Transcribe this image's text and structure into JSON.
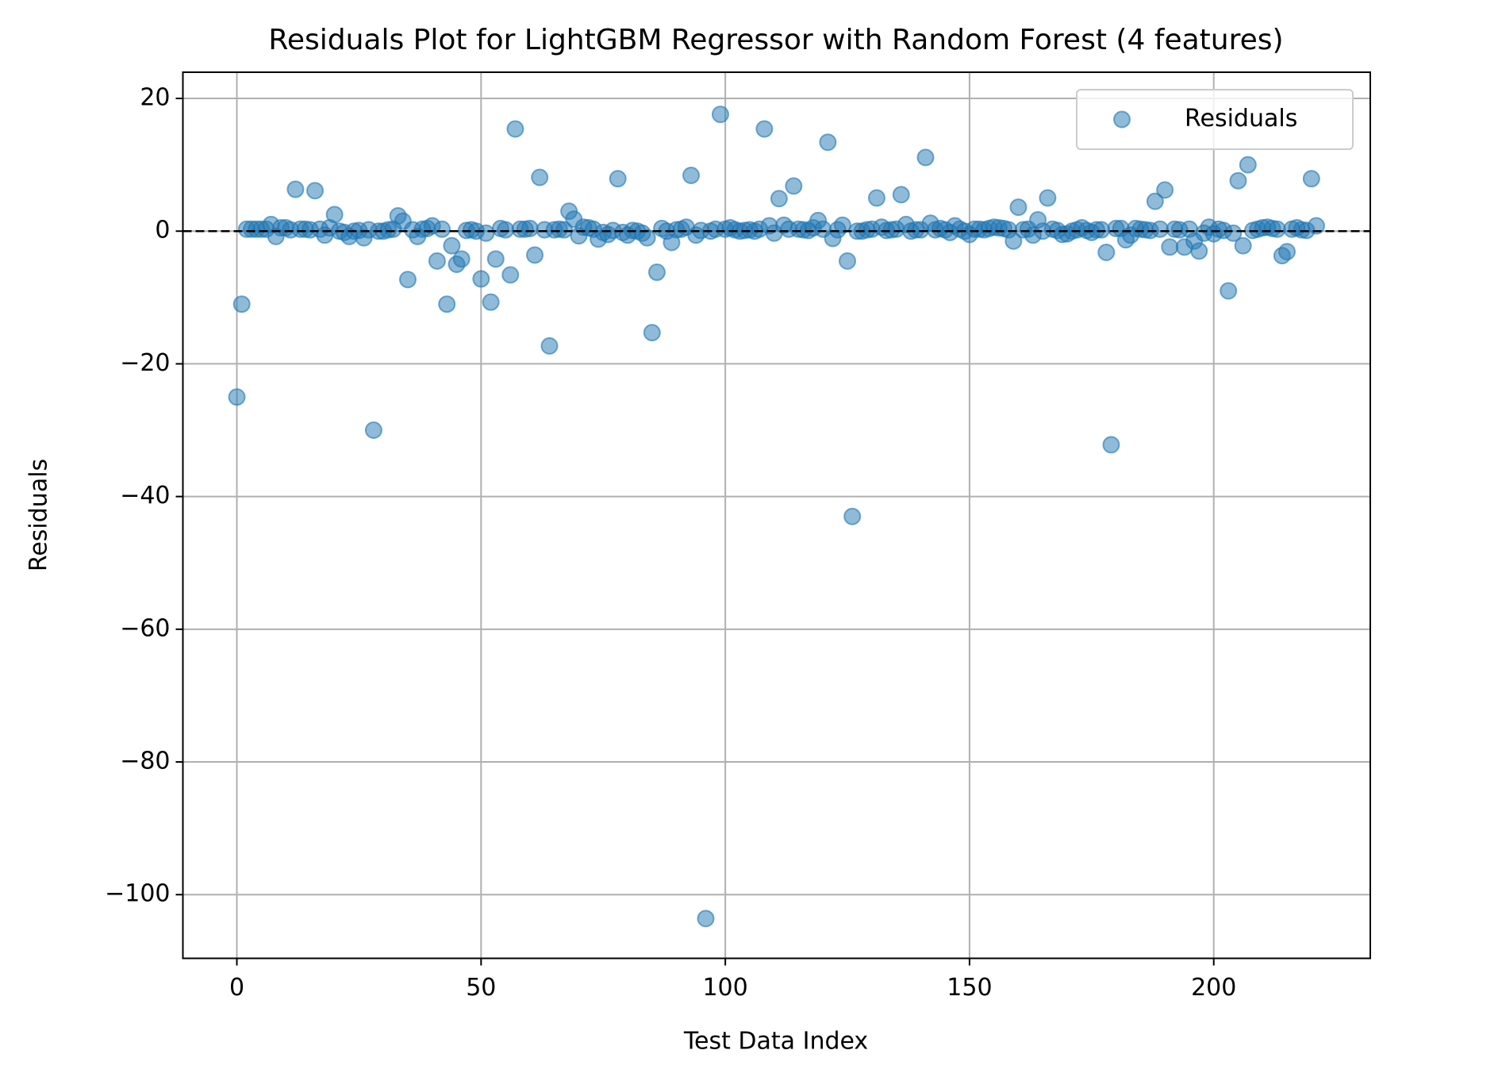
{
  "chart_data": {
    "type": "scatter",
    "title": "Residuals Plot for LightGBM Regressor with Random Forest (4 features)",
    "xlabel": "Test Data Index",
    "ylabel": "Residuals",
    "xlim": [
      -11.05,
      232.05
    ],
    "ylim": [
      -109.6,
      23.95
    ],
    "xticks": [
      0,
      50,
      100,
      150,
      200
    ],
    "yticks": [
      20,
      0,
      {
        "value": -20,
        "label": "−20"
      },
      {
        "value": -40,
        "label": "−40"
      },
      {
        "value": -60,
        "label": "−60"
      },
      {
        "value": -80,
        "label": "−80"
      },
      {
        "value": -100,
        "label": "−100"
      }
    ],
    "grid": true,
    "legend": "upper right",
    "reference_line": 0,
    "series": [
      {
        "name": "Residuals",
        "color": "#1f77b4",
        "x": [
          0,
          1,
          2,
          3,
          4,
          5,
          6,
          7,
          8,
          9,
          10,
          11,
          12,
          13,
          14,
          15,
          16,
          17,
          18,
          19,
          20,
          21,
          22,
          23,
          24,
          25,
          26,
          27,
          28,
          29,
          30,
          31,
          32,
          33,
          34,
          35,
          36,
          37,
          38,
          39,
          40,
          41,
          42,
          43,
          44,
          45,
          46,
          47,
          48,
          49,
          50,
          51,
          52,
          53,
          54,
          55,
          56,
          57,
          58,
          59,
          60,
          61,
          62,
          63,
          64,
          65,
          66,
          67,
          68,
          69,
          70,
          71,
          72,
          73,
          74,
          75,
          76,
          77,
          78,
          79,
          80,
          81,
          82,
          83,
          84,
          85,
          86,
          87,
          88,
          89,
          90,
          91,
          92,
          93,
          94,
          95,
          96,
          97,
          98,
          99,
          100,
          101,
          102,
          103,
          104,
          105,
          106,
          107,
          108,
          109,
          110,
          111,
          112,
          113,
          114,
          115,
          116,
          117,
          118,
          119,
          120,
          121,
          122,
          123,
          124,
          125,
          126,
          127,
          128,
          129,
          130,
          131,
          132,
          133,
          134,
          135,
          136,
          137,
          138,
          139,
          140,
          141,
          142,
          143,
          144,
          145,
          146,
          147,
          148,
          149,
          150,
          151,
          152,
          153,
          154,
          155,
          156,
          157,
          158,
          159,
          160,
          161,
          162,
          163,
          164,
          165,
          166,
          167,
          168,
          169,
          170,
          171,
          172,
          173,
          174,
          175,
          176,
          177,
          178,
          179,
          180,
          181,
          182,
          183,
          184,
          185,
          186,
          187,
          188,
          189,
          190,
          191,
          192,
          193,
          194,
          195,
          196,
          197,
          198,
          199,
          200,
          201,
          202,
          203,
          204,
          205,
          206,
          207,
          208,
          209,
          210,
          211,
          212,
          213,
          214,
          215,
          216,
          217,
          218,
          219,
          220,
          221
        ],
        "values": [
          -25,
          -11,
          0.3,
          0.3,
          0.3,
          0.3,
          0.3,
          1,
          -0.8,
          0.5,
          0.5,
          0.2,
          6.3,
          0.3,
          0.3,
          0.2,
          6.1,
          0.3,
          -0.6,
          0.5,
          2.5,
          0,
          -0.2,
          -0.8,
          0,
          0.1,
          -1,
          0.2,
          -30,
          0,
          0,
          0.2,
          0.3,
          2.3,
          1.5,
          -7.3,
          0.2,
          -0.8,
          0.3,
          0.4,
          0.8,
          -4.5,
          0.3,
          -11,
          -2.2,
          -5,
          -4.2,
          0.1,
          0.2,
          0,
          -7.2,
          -0.3,
          -10.7,
          -4.2,
          0.4,
          0.2,
          -6.6,
          15.4,
          0.3,
          0.3,
          0.4,
          -3.6,
          8.1,
          0.2,
          -17.3,
          0.2,
          0.3,
          0.2,
          3,
          1.8,
          -0.7,
          0.6,
          0.5,
          0.3,
          -1.2,
          -0.2,
          -0.5,
          0.1,
          7.9,
          -0.2,
          -0.6,
          0.1,
          0,
          -0.3,
          -1,
          -15.3,
          -6.2,
          0.4,
          0,
          -1.7,
          0.2,
          0.3,
          0.6,
          8.4,
          -0.6,
          0.1,
          -103.6,
          0,
          0.3,
          17.6,
          0.3,
          0.5,
          0.2,
          0,
          0.1,
          0.2,
          0,
          0.3,
          15.4,
          0.8,
          -0.3,
          4.9,
          0.9,
          0.3,
          6.8,
          0.3,
          0.2,
          0.1,
          0.5,
          1.6,
          0.3,
          13.4,
          -1.1,
          0.2,
          0.9,
          -4.5,
          -43,
          0,
          0,
          0.2,
          0.3,
          5,
          0.6,
          0.1,
          0.2,
          0.3,
          5.5,
          1,
          0,
          0.2,
          0.2,
          11.1,
          1.2,
          0.2,
          0.4,
          0.2,
          -0.2,
          0.8,
          0.3,
          0,
          -0.5,
          0.3,
          0.3,
          0.2,
          0.4,
          0.6,
          0.5,
          0.4,
          0.2,
          -1.5,
          3.6,
          0.2,
          0.3,
          -0.6,
          1.7,
          0,
          5,
          0.3,
          0.1,
          -0.5,
          -0.4,
          0,
          0.2,
          0.5,
          0.1,
          -0.2,
          0.2,
          0.2,
          -3.2,
          -32.2,
          0.4,
          0.4,
          -1.3,
          -0.6,
          0.4,
          0.3,
          0.2,
          0.1,
          4.5,
          0.3,
          6.2,
          -2.4,
          0.3,
          0.2,
          -2.4,
          0.3,
          -1.5,
          -3,
          -0.3,
          0.6,
          -0.4,
          0.3,
          0.1,
          -9,
          -0.3,
          7.6,
          -2.2,
          10,
          0.1,
          0.3,
          0.5,
          0.6,
          0.4,
          0.3,
          -3.7,
          -3.1,
          0.3,
          0.5,
          0.2,
          0.1,
          7.9,
          0.8
        ]
      }
    ]
  }
}
